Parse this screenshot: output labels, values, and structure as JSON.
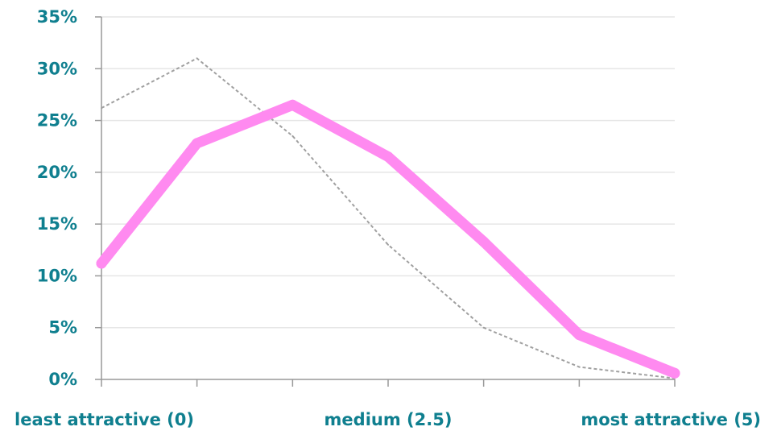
{
  "chart_data": {
    "type": "line",
    "title": "",
    "xlabel": "",
    "ylabel": "",
    "x": [
      0,
      0.833,
      1.667,
      2.5,
      3.333,
      4.167,
      5
    ],
    "xlim": [
      0,
      5
    ],
    "ylim": [
      0,
      35
    ],
    "y_ticks": [
      "0%",
      "5%",
      "10%",
      "15%",
      "20%",
      "25%",
      "30%",
      "35%"
    ],
    "x_tick_labels": [
      {
        "value": 0,
        "label": "least attractive (0)"
      },
      {
        "value": 2.5,
        "label": "medium (2.5)"
      },
      {
        "value": 5,
        "label": "most attractive (5)"
      }
    ],
    "grid": "horizontal",
    "legend": "none",
    "series": [
      {
        "values": [
          26.2,
          31.0,
          23.5,
          13.0,
          5.0,
          1.2,
          0.1
        ],
        "color": "#a0a0a0",
        "style": "dashed"
      },
      {
        "values": [
          11.2,
          22.8,
          26.5,
          21.5,
          13.3,
          4.3,
          0.6
        ],
        "color": "#ff8af0",
        "style": "thick"
      }
    ]
  }
}
